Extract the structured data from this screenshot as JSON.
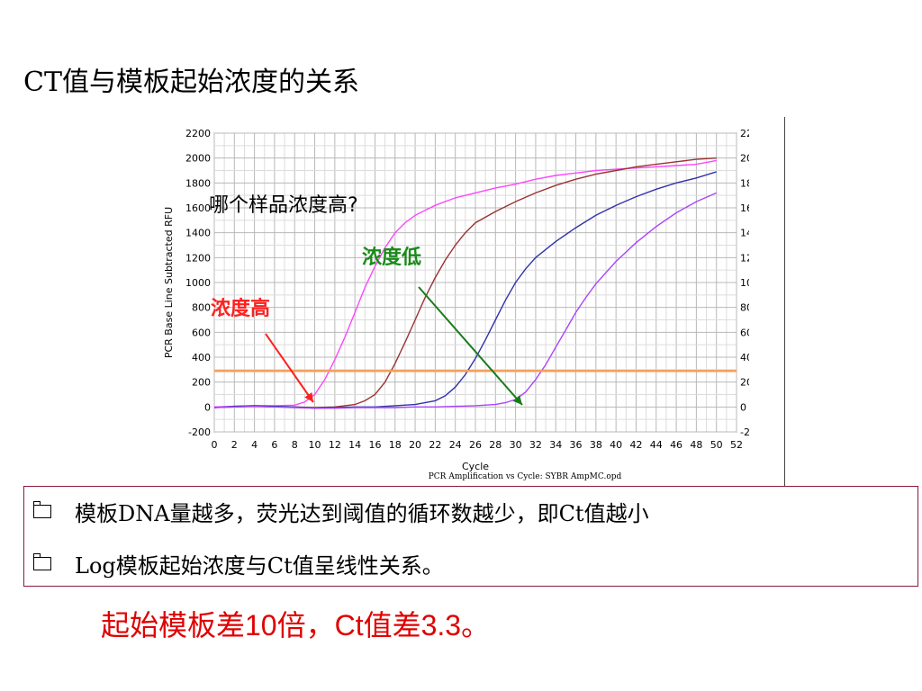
{
  "title": "CT值与模板起始浓度的关系",
  "notes": [
    "模板DNA量越多，荧光达到阈值的循环数越少，即Ct值越小",
    "Log模板起始浓度与Ct值呈线性关系。"
  ],
  "footer": "起始模板差10倍，Ct值差3.3。",
  "chart_data": {
    "type": "line",
    "title": "",
    "caption": "PCR Amplification vs Cycle: SYBR AmpMC.opd",
    "xlabel": "Cycle",
    "ylabel": "PCR Base Line Subtracted RFU",
    "xlim": [
      0,
      52
    ],
    "ylim": [
      -200,
      2200
    ],
    "x_ticks": [
      0,
      2,
      4,
      6,
      8,
      10,
      12,
      14,
      16,
      18,
      20,
      22,
      24,
      26,
      28,
      30,
      32,
      34,
      36,
      38,
      40,
      42,
      44,
      46,
      48,
      50,
      52
    ],
    "y_ticks": [
      -200,
      0,
      200,
      400,
      600,
      800,
      1000,
      1200,
      1400,
      1600,
      1800,
      2000,
      2200
    ],
    "grid": true,
    "threshold": {
      "y": 290,
      "color": "#f0a060"
    },
    "series": [
      {
        "color": "#ff44ff",
        "x": [
          0,
          2,
          4,
          6,
          8,
          9,
          10,
          11,
          12,
          13,
          14,
          15,
          16,
          17,
          18,
          19,
          20,
          22,
          24,
          26,
          28,
          30,
          32,
          34,
          36,
          38,
          40,
          42,
          44,
          46,
          48,
          50
        ],
        "y": [
          0,
          5,
          10,
          10,
          15,
          40,
          100,
          220,
          380,
          560,
          760,
          960,
          1130,
          1280,
          1400,
          1480,
          1540,
          1620,
          1680,
          1720,
          1760,
          1790,
          1830,
          1860,
          1880,
          1900,
          1910,
          1920,
          1930,
          1940,
          1950,
          1980
        ]
      },
      {
        "color": "#993333",
        "x": [
          0,
          2,
          4,
          6,
          8,
          10,
          12,
          14,
          15,
          16,
          17,
          18,
          19,
          20,
          21,
          22,
          23,
          24,
          25,
          26,
          28,
          30,
          32,
          34,
          36,
          38,
          40,
          42,
          44,
          46,
          48,
          50
        ],
        "y": [
          -5,
          0,
          5,
          0,
          0,
          -5,
          0,
          20,
          50,
          100,
          200,
          350,
          520,
          700,
          880,
          1040,
          1180,
          1300,
          1400,
          1480,
          1570,
          1650,
          1720,
          1780,
          1830,
          1870,
          1900,
          1930,
          1950,
          1970,
          1990,
          2000
        ]
      },
      {
        "color": "#3333aa",
        "x": [
          0,
          2,
          4,
          6,
          8,
          10,
          12,
          14,
          16,
          18,
          20,
          22,
          23,
          24,
          25,
          26,
          27,
          28,
          29,
          30,
          31,
          32,
          34,
          36,
          38,
          40,
          42,
          44,
          46,
          48,
          50
        ],
        "y": [
          -5,
          5,
          10,
          5,
          0,
          -10,
          -5,
          0,
          0,
          10,
          20,
          50,
          90,
          160,
          260,
          390,
          540,
          700,
          860,
          1000,
          1110,
          1200,
          1330,
          1440,
          1540,
          1620,
          1690,
          1750,
          1800,
          1840,
          1890
        ]
      },
      {
        "color": "#aa44ff",
        "x": [
          0,
          2,
          4,
          6,
          8,
          10,
          12,
          14,
          16,
          18,
          20,
          22,
          24,
          26,
          28,
          29,
          30,
          31,
          32,
          33,
          34,
          35,
          36,
          37,
          38,
          40,
          42,
          44,
          46,
          48,
          50
        ],
        "y": [
          -5,
          0,
          5,
          0,
          -5,
          -10,
          -10,
          -5,
          -5,
          -5,
          0,
          0,
          5,
          10,
          20,
          35,
          60,
          120,
          220,
          340,
          480,
          620,
          760,
          880,
          990,
          1170,
          1320,
          1450,
          1560,
          1650,
          1720
        ]
      }
    ],
    "annotations": [
      {
        "text": "哪个样品浓度高?",
        "color": "#000000"
      },
      {
        "text": "浓度低",
        "color": "#1a8a1a"
      },
      {
        "text": "浓度高",
        "color": "#ff2020"
      }
    ]
  }
}
